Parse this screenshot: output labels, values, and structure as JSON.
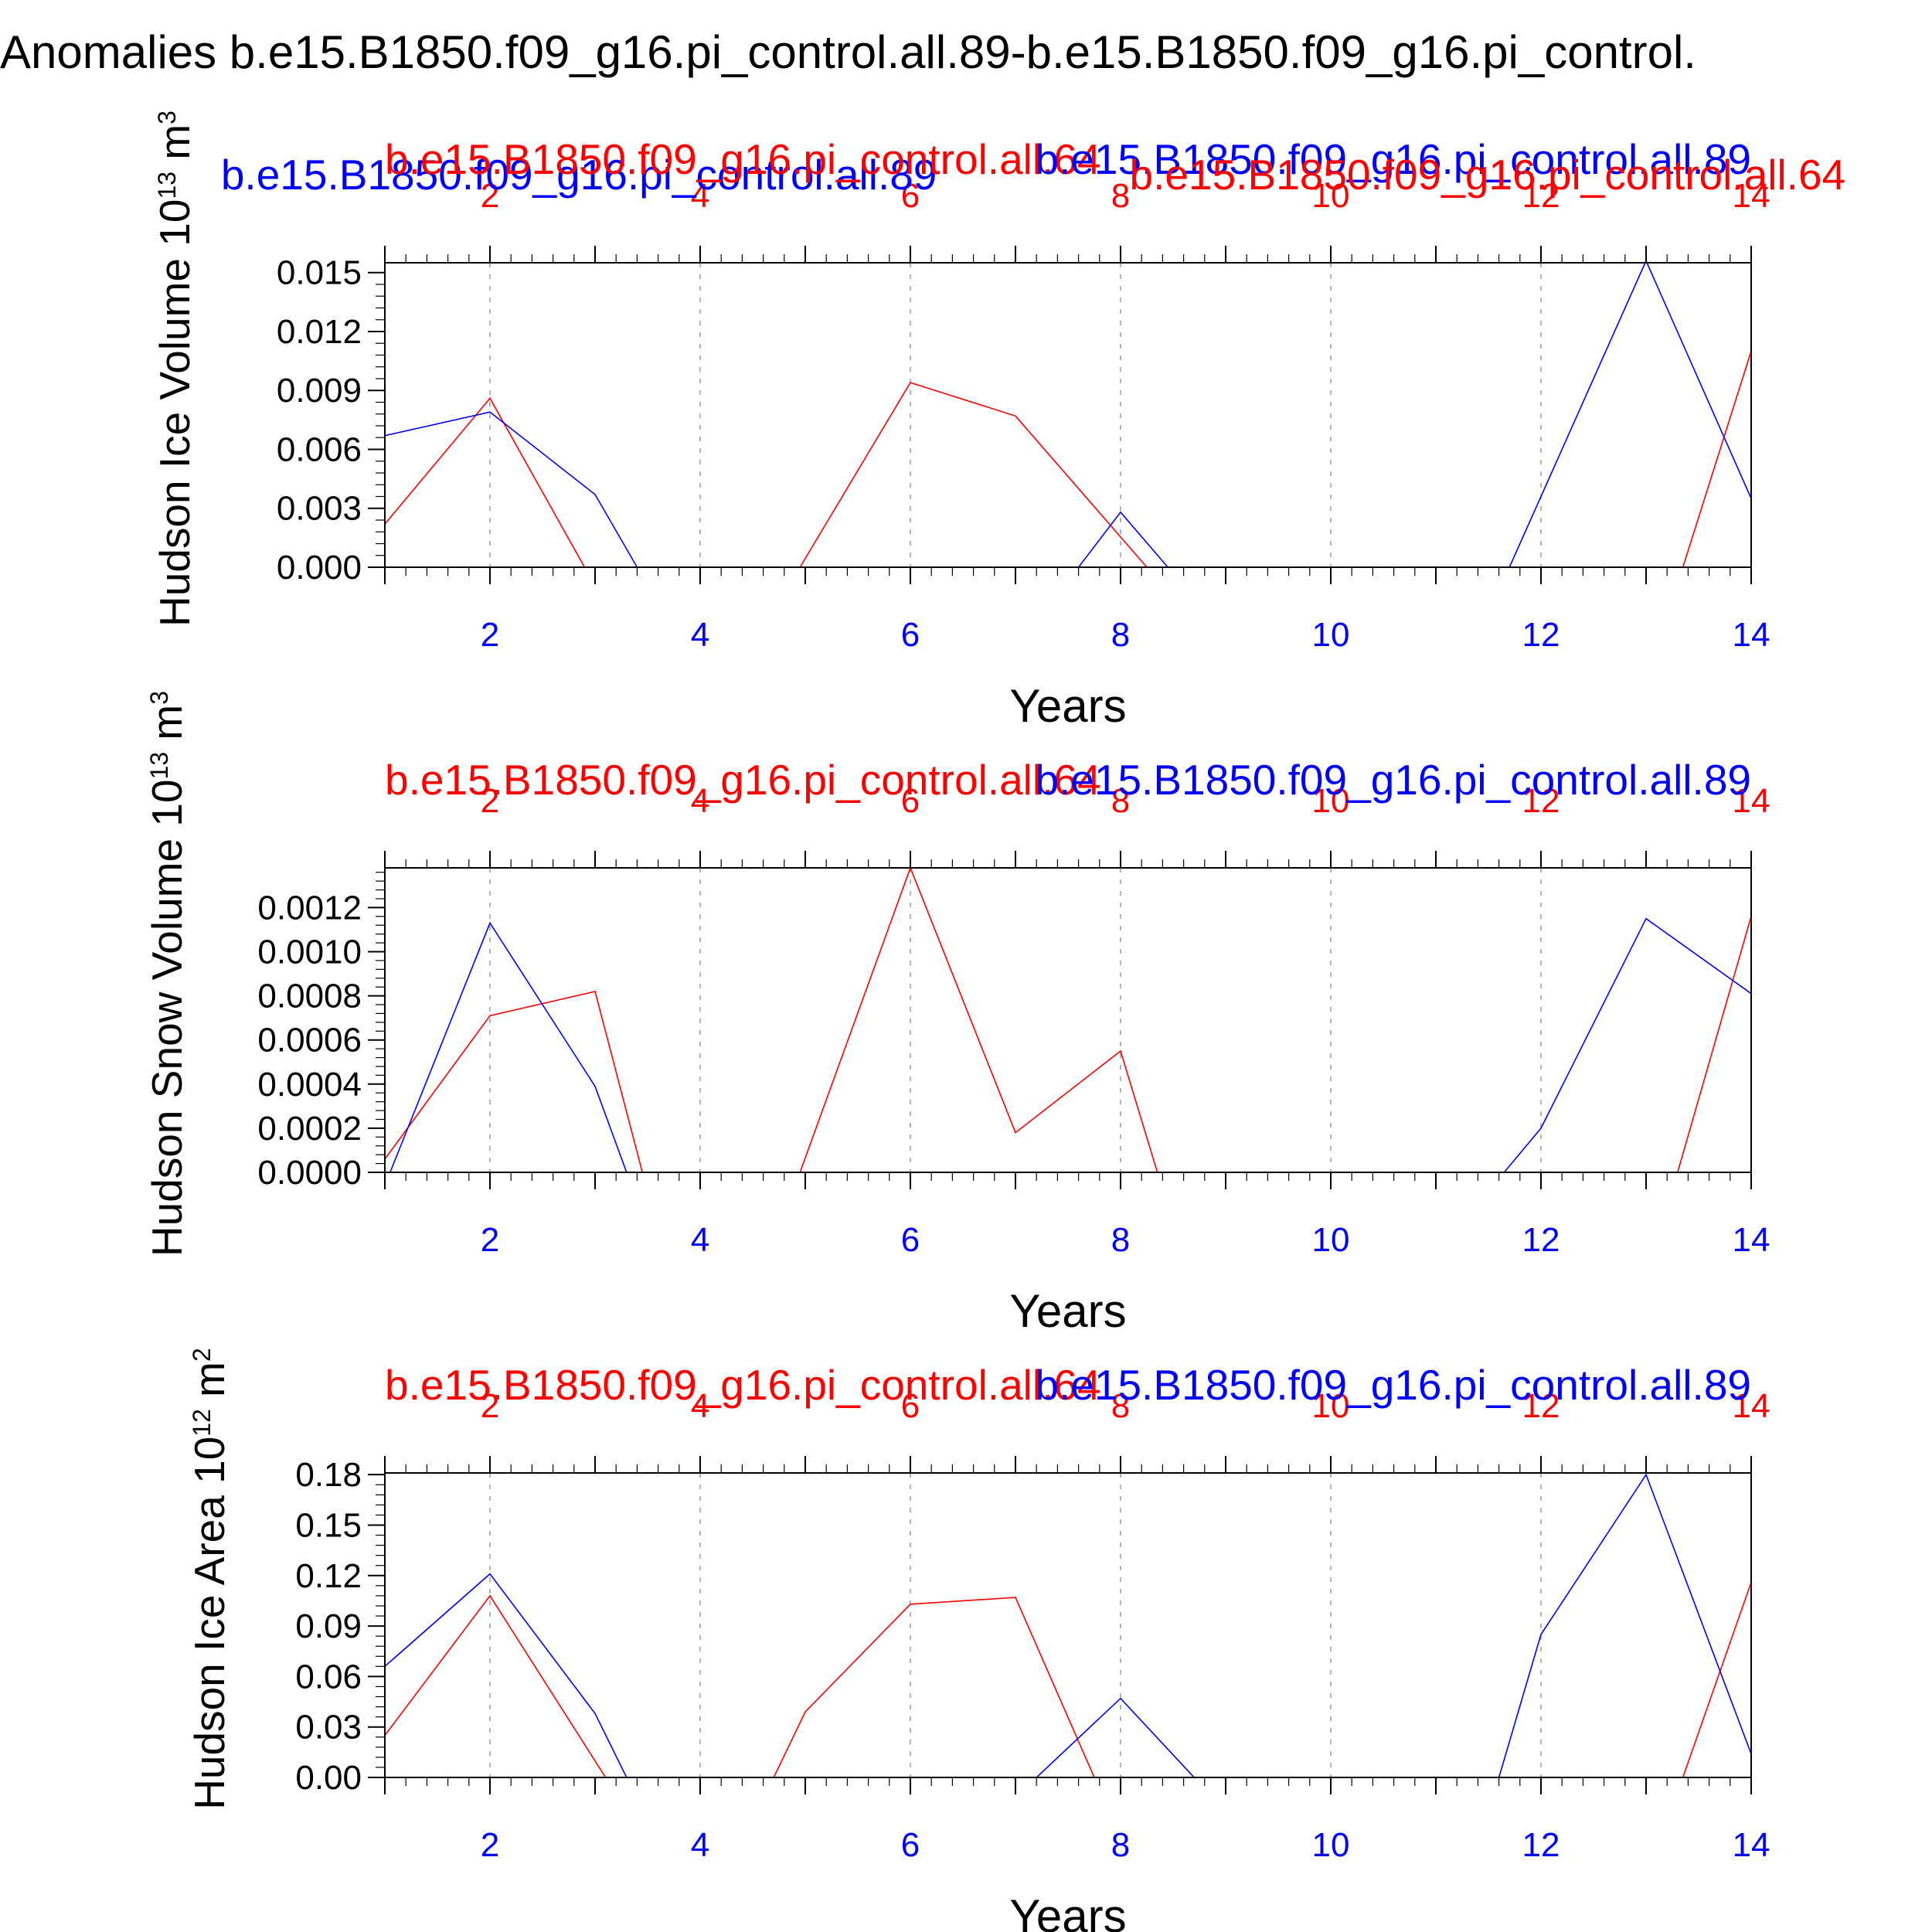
{
  "figure_title": "Anomalies b.e15.B1850.f09_g16.pi_control.all.89-b.e15.B1850.f09_g16.pi_control.",
  "colors": {
    "run_a": "#ff0000",
    "run_b": "#0000ff",
    "frame": "#000000",
    "grid": "#999999"
  },
  "chart_data": [
    {
      "type": "line",
      "title": "",
      "ylabel": "Hudson Ice Volume 10^13 m^3",
      "ylabel_main": "Hudson Ice Volume 10",
      "ylabel_exp": "13",
      "ylabel_unit": " m",
      "ylabel_unit_exp": "3",
      "xlabel": "Years",
      "xlim": [
        1,
        14
      ],
      "ylim": [
        0,
        0.0155
      ],
      "yticks": [
        "0.000",
        "0.003",
        "0.006",
        "0.009",
        "0.012",
        "0.015"
      ],
      "ytick_values": [
        0,
        0.003,
        0.006,
        0.009,
        0.012,
        0.015
      ],
      "yminor_step": 0.0006,
      "xticks": [
        2,
        4,
        6,
        8,
        10,
        12,
        14
      ],
      "top_labels": [
        {
          "text": "b.e15.B1850.f09_g16.pi_control.all.89",
          "color": "run_b",
          "anchor": "start",
          "rx": -0.12,
          "dy": -95
        },
        {
          "text": "b.e15.B1850.f09_g16.pi_control.all.64",
          "color": "run_a",
          "anchor": "start",
          "rx": 0.0,
          "dy": -115
        },
        {
          "text": "b.e15.B1850.f09_g16.pi_control.all.89",
          "color": "run_b",
          "anchor": "end",
          "rx": 1.0,
          "dy": -115
        },
        {
          "text": "b.e15.B1850.f09_g16.pi_control.all.64",
          "color": "run_a",
          "anchor": "start",
          "rx": 0.545,
          "dy": -95
        }
      ],
      "series": [
        {
          "name": "b.e15.B1850.f09_g16.pi_control.all.64",
          "color": "run_a",
          "x": [
            1,
            2,
            2.9,
            4.95,
            6,
            7,
            8.25,
            13.35,
            14
          ],
          "y": [
            0.0022,
            0.0086,
            0,
            0,
            0.0094,
            0.0077,
            0,
            0,
            0.011
          ]
        },
        {
          "name": "b.e15.B1850.f09_g16.pi_control.all.89",
          "color": "run_b",
          "x": [
            1,
            2,
            3,
            3.4,
            7.6,
            8,
            8.45,
            11.7,
            13,
            14
          ],
          "y": [
            0.0067,
            0.0079,
            0.0037,
            0,
            0,
            0.0028,
            0,
            0,
            0.0156,
            0.0035
          ]
        }
      ]
    },
    {
      "type": "line",
      "title": "",
      "ylabel": "Hudson Snow Volume 10^13 m^3",
      "ylabel_main": "Hudson Snow Volume 10",
      "ylabel_exp": "13",
      "ylabel_unit": " m",
      "ylabel_unit_exp": "3",
      "xlabel": "Years",
      "xlim": [
        1,
        14
      ],
      "ylim": [
        0,
        0.00138
      ],
      "yticks": [
        "0.0000",
        "0.0002",
        "0.0004",
        "0.0006",
        "0.0008",
        "0.0010",
        "0.0012"
      ],
      "ytick_values": [
        0,
        0.0002,
        0.0004,
        0.0006,
        0.0008,
        0.001,
        0.0012
      ],
      "yminor_step": 4e-05,
      "xticks": [
        2,
        4,
        6,
        8,
        10,
        12,
        14
      ],
      "top_labels": [
        {
          "text": "b.e15.B1850.f09_g16.pi_control.all.64",
          "color": "run_a",
          "anchor": "start",
          "rx": 0.0,
          "dy": -95
        },
        {
          "text": "b.e15.B1850.f09_g16.pi_control.all.89",
          "color": "run_b",
          "anchor": "end",
          "rx": 1.0,
          "dy": -95
        }
      ],
      "series": [
        {
          "name": "b.e15.B1850.f09_g16.pi_control.all.64",
          "color": "run_a",
          "x": [
            1,
            2,
            3,
            3.45,
            4.95,
            6,
            7,
            8,
            8.35,
            13.3,
            14
          ],
          "y": [
            6e-05,
            0.00071,
            0.00082,
            0,
            0,
            0.00138,
            0.00018,
            0.00055,
            0,
            0,
            0.00116
          ]
        },
        {
          "name": "b.e15.B1850.f09_g16.pi_control.all.89",
          "color": "run_b",
          "x": [
            1.05,
            2,
            3,
            3.3,
            11.65,
            12,
            13,
            14
          ],
          "y": [
            0,
            0.00113,
            0.00039,
            0,
            0,
            0.0002,
            0.00115,
            0.00081
          ]
        }
      ]
    },
    {
      "type": "line",
      "title": "",
      "ylabel": "Hudson Ice Area 10^12 m^2",
      "ylabel_main": "Hudson Ice Area 10",
      "ylabel_exp": "12",
      "ylabel_unit": " m",
      "ylabel_unit_exp": "2",
      "xlabel": "Years",
      "xlim": [
        1,
        14
      ],
      "ylim": [
        0,
        0.181
      ],
      "yticks": [
        "0.00",
        "0.03",
        "0.06",
        "0.09",
        "0.12",
        "0.15",
        "0.18"
      ],
      "ytick_values": [
        0,
        0.03,
        0.06,
        0.09,
        0.12,
        0.15,
        0.18
      ],
      "yminor_step": 0.006,
      "xticks": [
        2,
        4,
        6,
        8,
        10,
        12,
        14
      ],
      "top_labels": [
        {
          "text": "b.e15.B1850.f09_g16.pi_control.all.64",
          "color": "run_a",
          "anchor": "start",
          "rx": 0.0,
          "dy": -95
        },
        {
          "text": "b.e15.B1850.f09_g16.pi_control.all.89",
          "color": "run_b",
          "anchor": "end",
          "rx": 1.0,
          "dy": -95
        }
      ],
      "series": [
        {
          "name": "b.e15.B1850.f09_g16.pi_control.all.64",
          "color": "run_a",
          "x": [
            1,
            2,
            3.1,
            4.7,
            5,
            6,
            7,
            7.75,
            13.35,
            14
          ],
          "y": [
            0.025,
            0.108,
            0,
            0,
            0.039,
            0.103,
            0.107,
            0,
            0,
            0.116
          ]
        },
        {
          "name": "b.e15.B1850.f09_g16.pi_control.all.89",
          "color": "run_b",
          "x": [
            1,
            2,
            3,
            3.3,
            7.2,
            8,
            8.7,
            11.6,
            12,
            13,
            14
          ],
          "y": [
            0.066,
            0.121,
            0.038,
            0,
            0,
            0.047,
            0,
            0,
            0.085,
            0.18,
            0.014
          ]
        }
      ]
    }
  ]
}
